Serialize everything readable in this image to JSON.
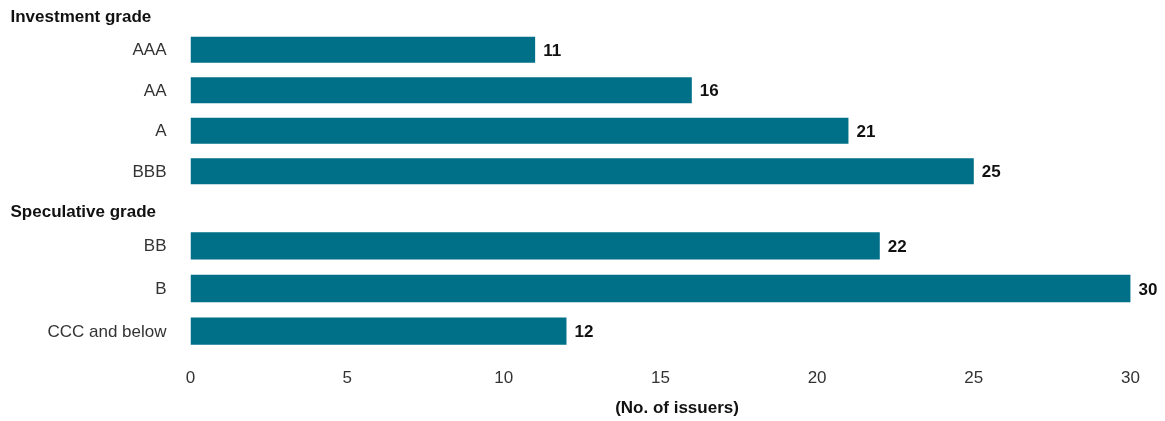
{
  "chart_data": [
    {
      "type": "bar",
      "orientation": "horizontal",
      "title": "Investment grade",
      "categories": [
        "AAA",
        "AA",
        "A",
        "BBB"
      ],
      "values": [
        11,
        16,
        21,
        25
      ],
      "color": "#006f88",
      "xlim": [
        0,
        30
      ],
      "tick_labels": "y",
      "data_labels": true
    },
    {
      "type": "bar",
      "orientation": "horizontal",
      "title": "Speculative grade",
      "categories": [
        "BB",
        "B",
        "CCC and below"
      ],
      "values": [
        22,
        30,
        12
      ],
      "color": "#006f88",
      "xlim": [
        0,
        30
      ],
      "xticks": [
        0,
        5,
        10,
        15,
        20,
        25,
        30
      ],
      "xlabel": "(No. of issuers)",
      "data_labels": true
    }
  ]
}
